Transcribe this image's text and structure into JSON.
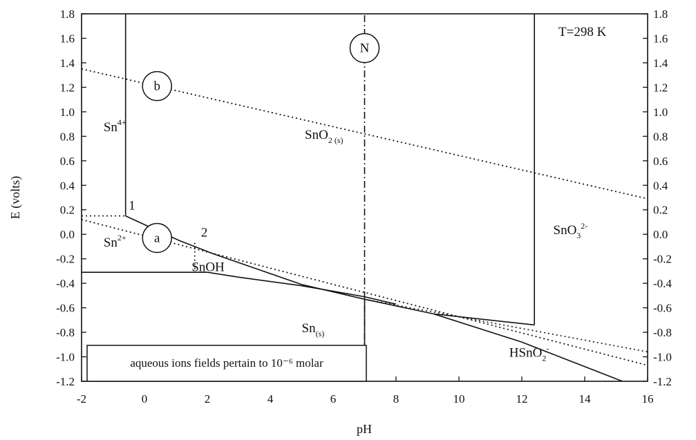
{
  "chart_data": {
    "type": "line",
    "title": "",
    "xlabel": "pH",
    "ylabel": "E (volts)",
    "xlim": [
      -2,
      16
    ],
    "ylim": [
      -1.2,
      1.8
    ],
    "x_ticks": [
      -2,
      0,
      2,
      4,
      6,
      8,
      10,
      12,
      14,
      16
    ],
    "x_tick_labels": [
      "-2",
      "0",
      "2",
      "4",
      "6",
      "8",
      "10",
      "12",
      "14",
      "16"
    ],
    "y_ticks": [
      -1.2,
      -1.0,
      -0.8,
      -0.6,
      -0.4,
      -0.2,
      0.0,
      0.2,
      0.4,
      0.6,
      0.8,
      1.0,
      1.2,
      1.4,
      1.6,
      1.8
    ],
    "y_tick_labels": [
      "-1.2",
      "-1.0",
      "-0.8",
      "-0.6",
      "-0.4",
      "-0.2",
      "0.0",
      "0.2",
      "0.4",
      "0.6",
      "0.8",
      "1.0",
      "1.2",
      "1.4",
      "1.6",
      "1.8"
    ],
    "grid": false,
    "temperature_label": "T=298 K",
    "note": "aqueous ions fields pertain to 10⁻⁶ molar",
    "boundaries": [
      {
        "style": "solid",
        "points": [
          [
            -0.6,
            1.8
          ],
          [
            -0.6,
            0.15
          ]
        ]
      },
      {
        "style": "solid",
        "points": [
          [
            -0.6,
            0.15
          ],
          [
            1.1,
            -0.05
          ],
          [
            2.2,
            -0.16
          ],
          [
            5.0,
            -0.41
          ],
          [
            7.0,
            -0.53
          ],
          [
            9.2,
            -0.65
          ],
          [
            12.4,
            -0.74
          ]
        ]
      },
      {
        "style": "solid",
        "points": [
          [
            -2,
            -0.31
          ],
          [
            2.0,
            -0.31
          ],
          [
            3.0,
            -0.35
          ],
          [
            5.0,
            -0.42
          ],
          [
            7.0,
            -0.51
          ],
          [
            8.0,
            -0.57
          ]
        ]
      },
      {
        "style": "solid",
        "points": [
          [
            9.2,
            -0.65
          ],
          [
            12.0,
            -0.88
          ],
          [
            15.2,
            -1.2
          ]
        ]
      },
      {
        "style": "solid",
        "points": [
          [
            12.4,
            1.8
          ],
          [
            12.4,
            -0.74
          ]
        ]
      },
      {
        "style": "solid",
        "points": [
          [
            7.0,
            -1.2
          ],
          [
            7.0,
            -0.53
          ]
        ]
      },
      {
        "style": "dotted",
        "points": [
          [
            -2,
            0.15
          ],
          [
            -0.6,
            0.15
          ]
        ]
      },
      {
        "style": "dotted",
        "points": [
          [
            1.6,
            -0.07
          ],
          [
            1.6,
            -0.31
          ]
        ]
      }
    ],
    "water_lines": [
      {
        "name": "b",
        "style": "dotted",
        "points": [
          [
            -2,
            1.35
          ],
          [
            16,
            0.29
          ]
        ]
      },
      {
        "name": "a",
        "style": "dotted",
        "points": [
          [
            -2,
            0.12
          ],
          [
            16,
            -1.07
          ]
        ]
      }
    ],
    "neutral_line": {
      "name": "N",
      "style": "dashdot",
      "x": 7.0
    },
    "extra_dotted": {
      "points": [
        [
          7.0,
          -0.53
        ],
        [
          16,
          -0.96
        ]
      ]
    },
    "regions": [
      {
        "label": "Sn",
        "sup": "4+",
        "x": -1.3,
        "y": 0.84
      },
      {
        "label": "Sn",
        "sup": "2+",
        "x": -1.3,
        "y": -0.1
      },
      {
        "label": "SnO",
        "sub": "2 (s)",
        "x": 5.1,
        "y": 0.78
      },
      {
        "label": "SnO",
        "sub": "3",
        "sup": "2-",
        "x": 13.0,
        "y": 0.0
      },
      {
        "label": "SnOH",
        "x": 1.5,
        "y": -0.3
      },
      {
        "label": "Sn",
        "sub": "(s)",
        "x": 5.0,
        "y": -0.8
      },
      {
        "label": "HSnO",
        "sub": "2",
        "sup": "-",
        "x": 11.6,
        "y": -1.0
      }
    ],
    "point_labels": [
      {
        "label": "1",
        "x": -0.5,
        "y": 0.2
      },
      {
        "label": "2",
        "x": 1.8,
        "y": -0.02
      }
    ],
    "circle_markers": [
      {
        "label": "b",
        "x": 0.4,
        "y": 1.21
      },
      {
        "label": "a",
        "x": 0.4,
        "y": -0.03
      },
      {
        "label": "N",
        "x": 7.0,
        "y": 1.52
      }
    ]
  }
}
